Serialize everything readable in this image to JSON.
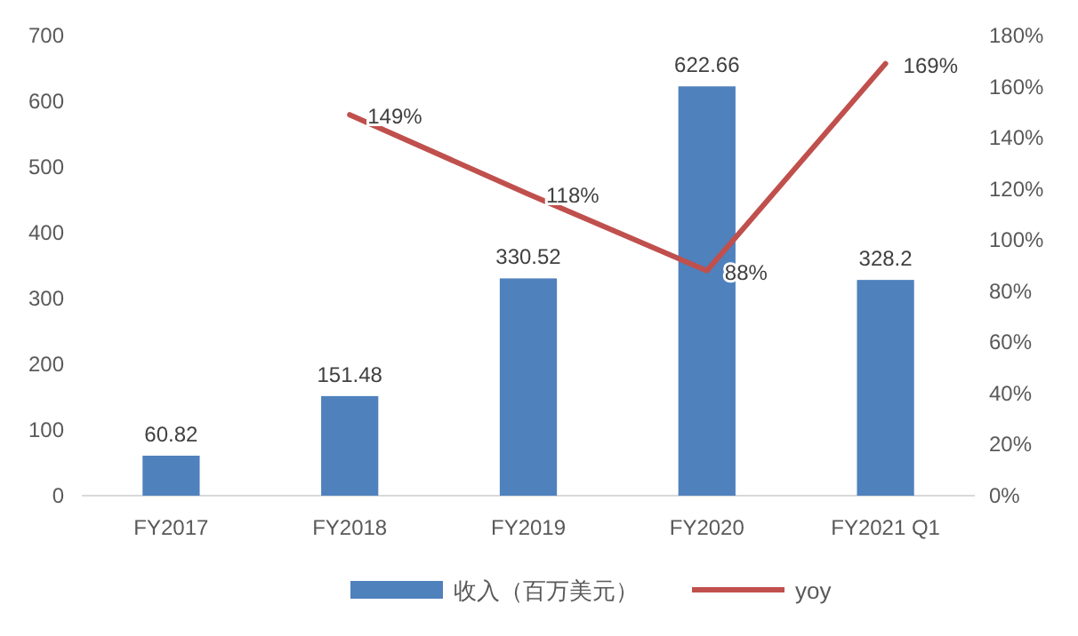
{
  "chart_data": {
    "type": "bar",
    "categories": [
      "FY2017",
      "FY2018",
      "FY2019",
      "FY2020",
      "FY2021 Q1"
    ],
    "series": [
      {
        "name": "收入（百万美元）",
        "color": "#4f81bd",
        "values": [
          60.82,
          151.48,
          330.52,
          622.66,
          328.2
        ],
        "value_labels": [
          "60.82",
          "151.48",
          "330.52",
          "622.66",
          "328.2"
        ]
      },
      {
        "name": "yoy",
        "type": "line",
        "axis": "y2",
        "color": "#c0504d",
        "values": [
          null,
          149,
          118,
          88,
          169
        ],
        "value_labels": [
          null,
          "149%",
          "118%",
          "88%",
          "169%"
        ]
      }
    ],
    "ylim": [
      0,
      700
    ],
    "yticks": [
      0,
      100,
      200,
      300,
      400,
      500,
      600,
      700
    ],
    "y2lim": [
      0,
      180
    ],
    "y2ticks": [
      {
        "value": 0,
        "label": "0%"
      },
      {
        "value": 20,
        "label": "20%"
      },
      {
        "value": 40,
        "label": "40%"
      },
      {
        "value": 60,
        "label": "60%"
      },
      {
        "value": 80,
        "label": "80%"
      },
      {
        "value": 100,
        "label": "100%"
      },
      {
        "value": 120,
        "label": "120%"
      },
      {
        "value": 140,
        "label": "140%"
      },
      {
        "value": 160,
        "label": "160%"
      },
      {
        "value": 180,
        "label": "180%"
      }
    ],
    "grid": false,
    "legend": "bottom"
  }
}
